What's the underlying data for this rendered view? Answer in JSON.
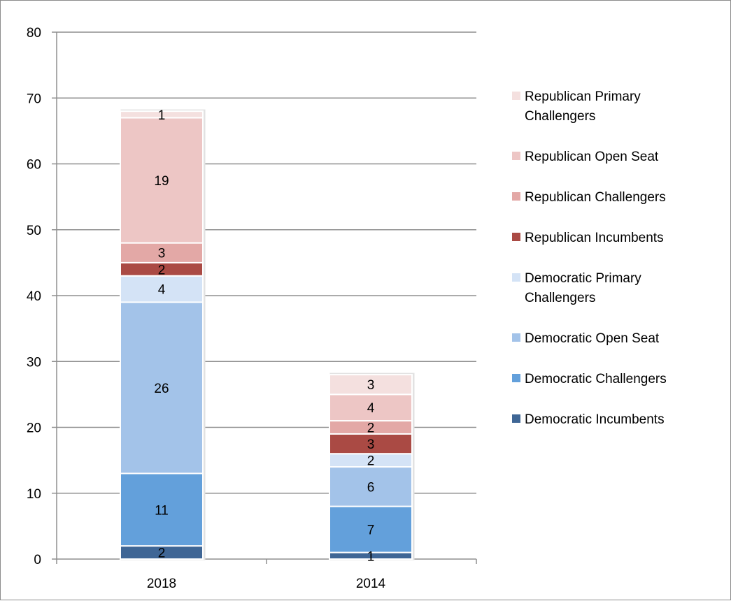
{
  "chart_data": {
    "type": "bar",
    "stacked": true,
    "title": "",
    "xlabel": "",
    "ylabel": "",
    "categories": [
      "2018",
      "2014"
    ],
    "ylim": [
      0,
      80
    ],
    "yticks": [
      0,
      10,
      20,
      30,
      40,
      50,
      60,
      70,
      80
    ],
    "grid": true,
    "legend_position": "right",
    "series": [
      {
        "name": "Democratic Incumbents",
        "values": [
          2,
          1
        ],
        "color": "#3f6695"
      },
      {
        "name": "Democratic Challengers",
        "values": [
          11,
          7
        ],
        "color": "#63a0db"
      },
      {
        "name": "Democratic Open Seat",
        "values": [
          26,
          6
        ],
        "color": "#a3c3e9"
      },
      {
        "name": "Democratic Primary Challengers",
        "values": [
          4,
          2
        ],
        "color": "#d4e3f6"
      },
      {
        "name": "Republican Incumbents",
        "values": [
          2,
          3
        ],
        "color": "#aa4a44"
      },
      {
        "name": "Republican Challengers",
        "values": [
          3,
          2
        ],
        "color": "#e3a8a6"
      },
      {
        "name": "Republican Open Seat",
        "values": [
          19,
          4
        ],
        "color": "#edc6c5"
      },
      {
        "name": "Republican Primary Challengers",
        "values": [
          1,
          3
        ],
        "color": "#f4e0df"
      }
    ]
  }
}
